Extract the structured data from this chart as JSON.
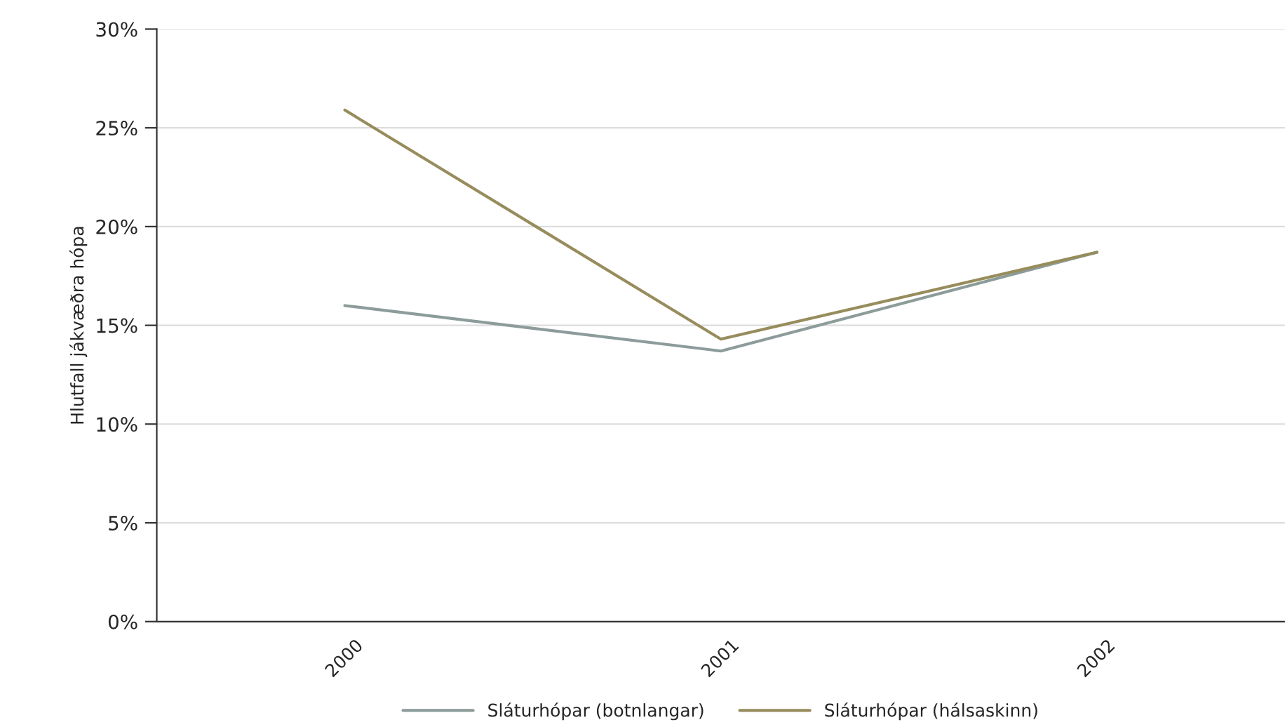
{
  "chart_data": {
    "type": "line",
    "ylabel": "Hlutfall jákvæðra hópa",
    "categories": [
      "2000",
      "2001",
      "2002"
    ],
    "series": [
      {
        "name": "Sláturhópar (botnlangar)",
        "color": "#8c9c9a",
        "values": [
          16.0,
          13.7,
          18.7
        ]
      },
      {
        "name": "Sláturhópar (hálsaskinn)",
        "color": "#978c5c",
        "values": [
          25.9,
          14.3,
          18.7
        ]
      }
    ],
    "ylim": [
      0,
      30
    ],
    "yticks": [
      {
        "value": 0,
        "label": "0%"
      },
      {
        "value": 5,
        "label": "5%"
      },
      {
        "value": 10,
        "label": "10%"
      },
      {
        "value": 15,
        "label": "15%"
      },
      {
        "value": 20,
        "label": "20%"
      },
      {
        "value": 25,
        "label": "25%"
      },
      {
        "value": 30,
        "label": "30%"
      }
    ],
    "grid": "y",
    "legend": "bottom",
    "marker": "none",
    "line_style": "solid"
  }
}
